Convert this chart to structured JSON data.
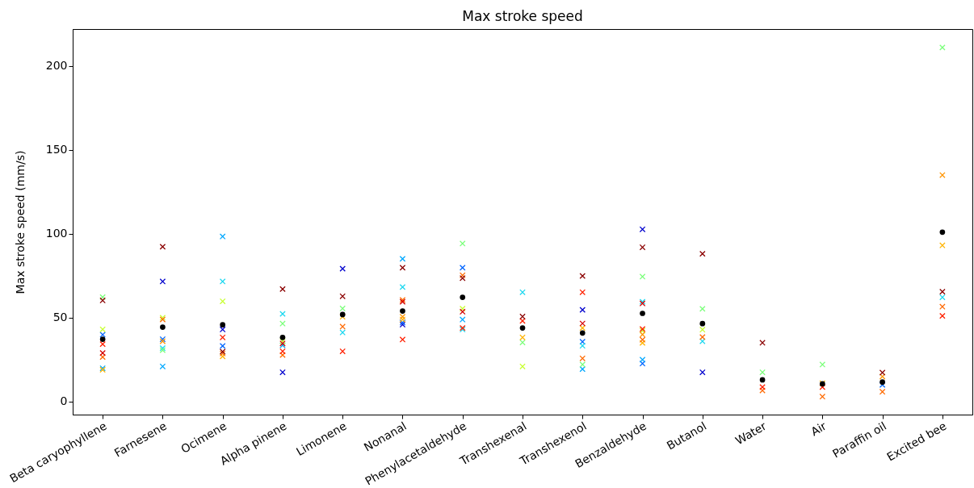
{
  "chart_data": {
    "type": "scatter",
    "title": "Max stroke speed",
    "ylabel": "Max stroke speed (mm/s)",
    "categories": [
      "Beta caryophyllene",
      "Farnesene",
      "Ocimene",
      "Alpha pinene",
      "Limonene",
      "Nonanal",
      "Phenylacetaldehyde",
      "Transhexenal",
      "Transhexenol",
      "Benzaldehyde",
      "Butanol",
      "Water",
      "Air",
      "Paraffin oil",
      "Excited bee"
    ],
    "ylim": [
      -7.7,
      222
    ],
    "yticks": [
      0,
      50,
      100,
      150,
      200
    ],
    "grid": false,
    "marker": "cross",
    "series": [
      {
        "color": "#0000cd",
        "values": [
          null,
          71.6,
          43,
          17.5,
          79.2,
          45.9,
          null,
          null,
          54.7,
          102.7,
          17.5,
          null,
          null,
          null,
          null
        ]
      },
      {
        "color": "#0066ff",
        "values": [
          39.9,
          37.2,
          33.2,
          null,
          null,
          47.1,
          79.8,
          null,
          35.7,
          22.7,
          null,
          null,
          null,
          10,
          null
        ]
      },
      {
        "color": "#00a8ff",
        "values": [
          19.9,
          21,
          98.4,
          33.6,
          null,
          85.1,
          48.9,
          null,
          19.4,
          25,
          null,
          null,
          null,
          null,
          null
        ]
      },
      {
        "color": "#1ed8f0",
        "values": [
          null,
          31.9,
          71.6,
          52.3,
          41.2,
          68.3,
          43,
          65.2,
          33.3,
          59.5,
          36,
          null,
          null,
          null,
          62.2
        ]
      },
      {
        "color": "#7cff7c",
        "values": [
          62.3,
          30.7,
          null,
          46.5,
          55.5,
          null,
          94.2,
          35.3,
          22.1,
          74.5,
          55.3,
          17.5,
          22.1,
          null,
          211
        ]
      },
      {
        "color": "#c8ff30",
        "values": [
          43.1,
          50,
          59.8,
          36,
          null,
          null,
          55.4,
          21,
          null,
          42.3,
          42.9,
          null,
          null,
          null,
          null
        ]
      },
      {
        "color": "#ffb400",
        "values": [
          19,
          null,
          27,
          null,
          50.6,
          49,
          null,
          38.3,
          43.9,
          35,
          null,
          null,
          11,
          null,
          93.1
        ]
      },
      {
        "color": "#ff9400",
        "values": [
          null,
          36,
          null,
          null,
          null,
          50.6,
          null,
          null,
          null,
          40,
          null,
          null,
          null,
          15,
          135
        ]
      },
      {
        "color": "#ff6a00",
        "values": [
          26.6,
          49,
          28.7,
          27.8,
          44.7,
          60.6,
          75.3,
          null,
          25.8,
          36.9,
          38.5,
          6.7,
          3,
          5.9,
          56.6
        ]
      },
      {
        "color": "#ff2000",
        "values": [
          34.3,
          null,
          38.3,
          30,
          30,
          37,
          43.9,
          48.1,
          65.2,
          43.3,
          null,
          8.7,
          8.7,
          null,
          51.1
        ]
      },
      {
        "color": "#d40000",
        "values": [
          29,
          null,
          null,
          34.7,
          null,
          59.5,
          53.6,
          null,
          46.6,
          58.5,
          null,
          null,
          null,
          null,
          null
        ]
      },
      {
        "color": "#8b0000",
        "values": [
          60.3,
          92.3,
          29.8,
          67.1,
          62.8,
          79.8,
          73.6,
          50.7,
          74.9,
          92,
          88.1,
          35.1,
          null,
          17.3,
          65.5
        ]
      },
      {
        "color": "#000000",
        "marker": "circle",
        "values": [
          37.2,
          44.4,
          45.8,
          38.3,
          51.9,
          54,
          62.2,
          43.9,
          40.9,
          52.6,
          46.5,
          13,
          10.6,
          11.7,
          101
        ]
      }
    ]
  }
}
